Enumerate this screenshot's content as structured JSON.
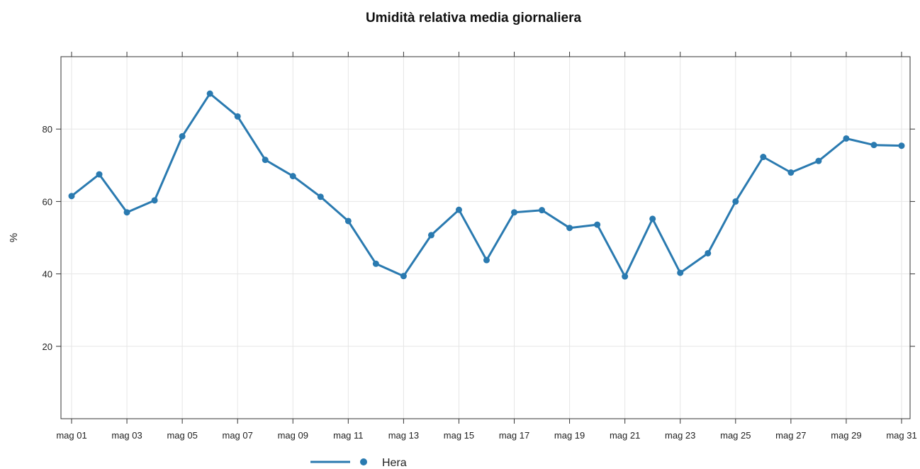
{
  "chart_data": {
    "type": "line",
    "title": "Umidità relativa media giornaliera",
    "xlabel": "",
    "ylabel": "%",
    "ylim": [
      0,
      100
    ],
    "grid": true,
    "legend_position": "bottom",
    "y_ticks": [
      20,
      40,
      60,
      80
    ],
    "x_tick_labels": [
      "mag 01",
      "mag 03",
      "mag 05",
      "mag 07",
      "mag 09",
      "mag 11",
      "mag 13",
      "mag 15",
      "mag 17",
      "mag 19",
      "mag 21",
      "mag 23",
      "mag 25",
      "mag 27",
      "mag 29",
      "mag 31"
    ],
    "x": [
      "mag 01",
      "mag 02",
      "mag 03",
      "mag 04",
      "mag 05",
      "mag 06",
      "mag 07",
      "mag 08",
      "mag 09",
      "mag 10",
      "mag 11",
      "mag 12",
      "mag 13",
      "mag 14",
      "mag 15",
      "mag 16",
      "mag 17",
      "mag 18",
      "mag 19",
      "mag 20",
      "mag 21",
      "mag 22",
      "mag 23",
      "mag 24",
      "mag 25",
      "mag 26",
      "mag 27",
      "mag 28",
      "mag 29",
      "mag 30",
      "mag 31"
    ],
    "series": [
      {
        "name": "Hera",
        "color": "#2a7ab0",
        "values": [
          61.5,
          67.5,
          57,
          60.3,
          78,
          89.8,
          83.5,
          71.5,
          67,
          61.3,
          54.6,
          42.8,
          39.4,
          50.7,
          57.7,
          43.8,
          57,
          57.6,
          52.7,
          53.6,
          39.3,
          55.2,
          40.3,
          45.7,
          60,
          72.3,
          68,
          71.2,
          77.4,
          75.6,
          75.4
        ]
      }
    ]
  }
}
